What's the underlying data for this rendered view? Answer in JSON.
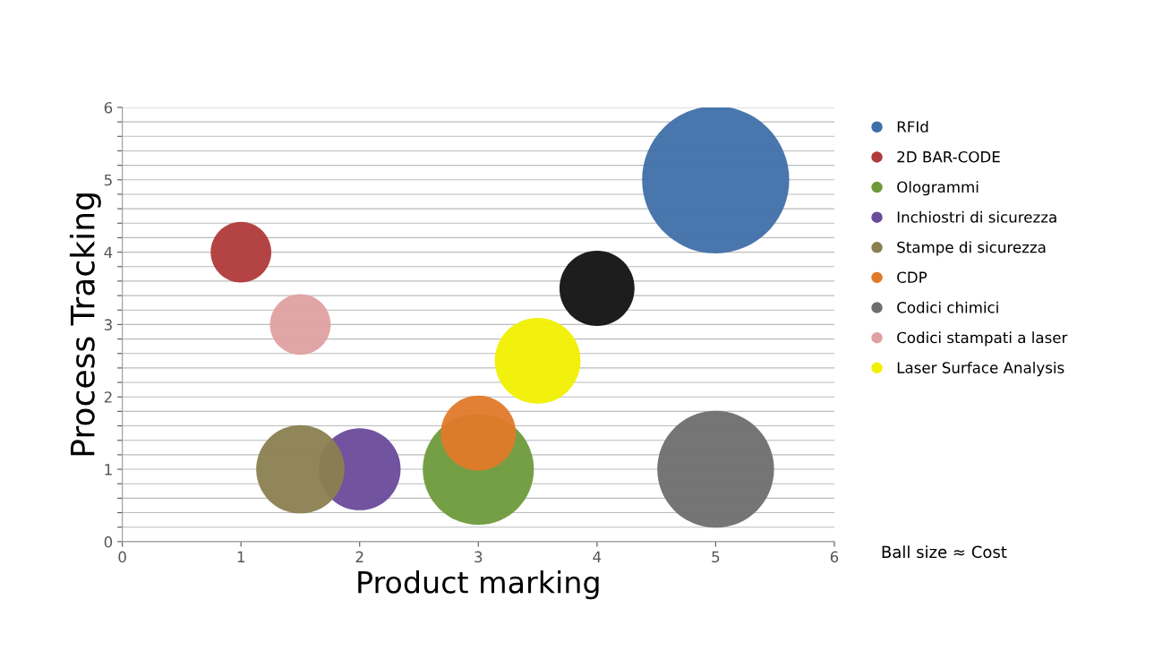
{
  "chart_data": {
    "type": "bubble",
    "xlabel": "Product marking",
    "ylabel": "Process Tracking",
    "xlim": [
      0,
      6
    ],
    "xticks": [
      0,
      1,
      2,
      3,
      4,
      5,
      6
    ],
    "ylim": [
      0,
      6
    ],
    "yticks": [
      0,
      {
        "value": 0.2,
        "label": null
      },
      {
        "value": 0.4,
        "label": null
      },
      {
        "value": 0.6,
        "label": null
      },
      {
        "value": 0.8,
        "label": null
      },
      1,
      {
        "value": 1.2,
        "label": null
      },
      {
        "value": 1.4,
        "label": null
      },
      {
        "value": 1.6,
        "label": null
      },
      {
        "value": 1.8,
        "label": null
      },
      2,
      {
        "value": 2.2,
        "label": null
      },
      {
        "value": 2.4,
        "label": null
      },
      {
        "value": 2.6,
        "label": null
      },
      {
        "value": 2.8,
        "label": null
      },
      3,
      {
        "value": 3.2,
        "label": null
      },
      {
        "value": 3.4,
        "label": null
      },
      {
        "value": 3.6,
        "label": null
      },
      {
        "value": 3.8,
        "label": null
      },
      4,
      {
        "value": 4.2,
        "label": null
      },
      {
        "value": 4.4,
        "label": null
      },
      {
        "value": 4.6,
        "label": null
      },
      {
        "value": 4.8,
        "label": null
      },
      5,
      {
        "value": 5.2,
        "label": null
      },
      {
        "value": 5.4,
        "label": null
      },
      {
        "value": 5.6,
        "label": null
      },
      {
        "value": 5.8,
        "label": null
      },
      6
    ],
    "grid": "y",
    "legend": "right",
    "annotations": [
      "Ball size ≈ Cost"
    ],
    "series": [
      {
        "name": "RFId",
        "color": "#3f6fa8",
        "x": [
          5
        ],
        "values": [
          5
        ],
        "sizes": [
          1
        ]
      },
      {
        "name": "2D BAR-CODE",
        "color": "#b03a3a",
        "x": [
          1
        ],
        "values": [
          4
        ],
        "sizes": [
          0.17
        ]
      },
      {
        "name": "Ologrammi",
        "color": "#6e9a3a",
        "x": [
          3
        ],
        "values": [
          1
        ],
        "sizes": [
          0.57
        ]
      },
      {
        "name": "Inchiostri di sicurezza",
        "color": "#6a4a9a",
        "x": [
          2
        ],
        "values": [
          1
        ],
        "sizes": [
          0.31
        ]
      },
      {
        "name": "Stampe di sicurezza",
        "color": "#8a7f50",
        "x": [
          1.5
        ],
        "values": [
          1
        ],
        "sizes": [
          0.36
        ]
      },
      {
        "name": "CDP",
        "color": "#e07a2a",
        "x": [
          3
        ],
        "values": [
          1.5
        ],
        "sizes": [
          0.26
        ]
      },
      {
        "name": "Codici chimici",
        "color": "#6e6e6e",
        "x": [
          5
        ],
        "values": [
          1
        ],
        "sizes": [
          0.63
        ]
      },
      {
        "name": "Codici stampati a laser",
        "color": "#e0a0a0",
        "x": [
          1.5
        ],
        "values": [
          3
        ],
        "sizes": [
          0.17
        ]
      },
      {
        "name": "Laser Surface Analysis",
        "color": "#f0f000",
        "x": [
          3.5
        ],
        "values": [
          2.5
        ],
        "sizes": [
          0.34
        ]
      },
      {
        "color": "#111111",
        "x": [
          4
        ],
        "values": [
          3.5
        ],
        "sizes": [
          0.26
        ]
      }
    ]
  }
}
